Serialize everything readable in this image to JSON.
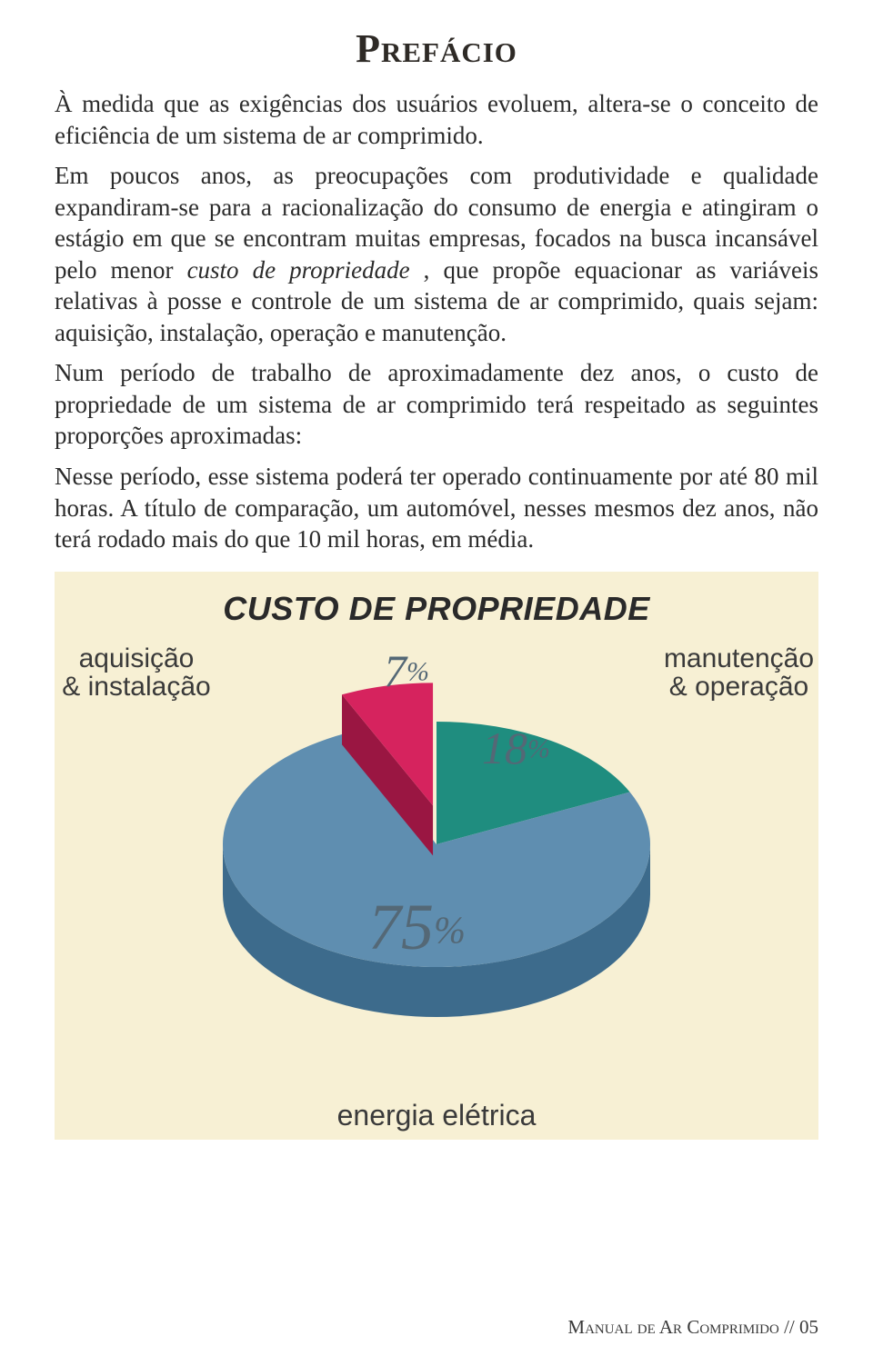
{
  "title": "Prefácio",
  "paragraphs": {
    "p1": "À medida que as exigências dos usuários evoluem, altera-se o conceito de eficiência de um sistema de ar comprimido.",
    "p2a": "Em poucos anos, as preocupações com produtividade e qualidade expandiram-se para a racionalização do consumo de energia e atingiram o estágio em que se encontram muitas empresas, focados na busca incansável pelo menor ",
    "p2_italic": "custo de propriedade",
    "p2b": " , que propõe equacionar as variáveis relativas à posse e controle de um sistema de ar comprimido, quais sejam: aquisição, instalação, operação e manutenção.",
    "p3": "Num período de trabalho de aproximadamente dez anos, o custo de propriedade de um sistema de ar comprimido terá respeitado as seguintes proporções aproximadas:",
    "p4": "Nesse período, esse sistema poderá ter operado continuamente por até 80 mil horas. A título de comparação, um automóvel, nesses mesmos dez anos, não terá rodado mais do que 10 mil horas, em média."
  },
  "chart": {
    "type": "pie",
    "title": "CUSTO DE PROPRIEDADE",
    "background_color": "#f7f0d4",
    "slices": [
      {
        "label_line1": "aquisição",
        "label_line2": "& instalação",
        "value": 7,
        "pct_text": "7",
        "color_top": "#d6235e",
        "color_side": "#9a1642"
      },
      {
        "label_line1": "manutenção",
        "label_line2": "& operação",
        "value": 18,
        "pct_text": "18",
        "color_top": "#1f8d7f",
        "color_side": "#14635a"
      },
      {
        "label_line1": "energia elétrica",
        "label_line2": "",
        "value": 75,
        "pct_text": "75",
        "color_top": "#5f8eb0",
        "color_side": "#3d6b8c"
      }
    ],
    "pct_label_color": "#546876",
    "title_color": "#2a2a2a",
    "label_font": "Arial Narrow"
  },
  "footer": {
    "text_prefix": "Manual de Ar Comprimido // ",
    "page": "05"
  }
}
